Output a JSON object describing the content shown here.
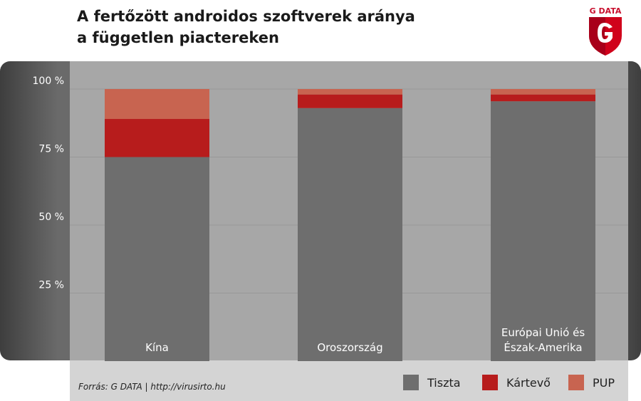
{
  "header": {
    "title_line1": "A fertőzött androidos szoftverek aránya",
    "title_line2": "a független piactereken",
    "logo_text": "G DATA"
  },
  "footer": {
    "source": "Forrás: G DATA | http://virusirto.hu"
  },
  "chart_data": {
    "type": "bar",
    "stacked": true,
    "categories": [
      "Kína",
      "Oroszország",
      "Európai Unió és Észak-Amerika"
    ],
    "category_label_lines": [
      [
        "Kína"
      ],
      [
        "Oroszország"
      ],
      [
        "Európai Unió és",
        "Észak-Amerika"
      ]
    ],
    "series": [
      {
        "name": "Tiszta",
        "values": [
          75,
          93,
          95.5
        ],
        "color": "#6e6e6e"
      },
      {
        "name": "Kártevő",
        "values": [
          14,
          5,
          2.5
        ],
        "color": "#b71c1c"
      },
      {
        "name": "PUP",
        "values": [
          11,
          2,
          2
        ],
        "color": "#c86450"
      }
    ],
    "yticks": [
      "25 %",
      "50 %",
      "75 %",
      "100 %"
    ],
    "ytick_values": [
      25,
      50,
      75,
      100
    ],
    "ylim": [
      0,
      100
    ],
    "grid": true,
    "legend_position": "bottom"
  }
}
